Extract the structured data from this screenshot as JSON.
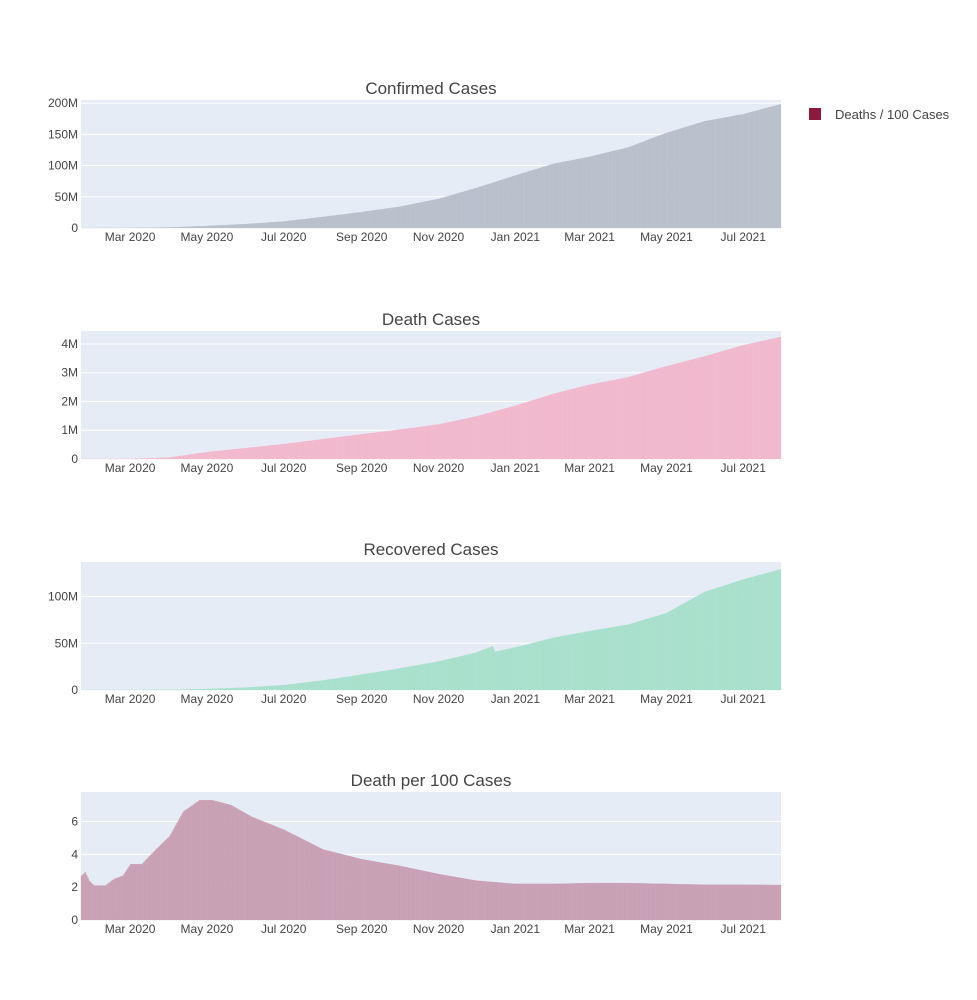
{
  "legend": {
    "label": "Deaths / 100 Cases",
    "color": "#8b1a3c",
    "placement": "top-right"
  },
  "colors": {
    "plot_background": "#e5ecf6",
    "gridline": "#ffffff",
    "text": "#444444"
  },
  "chart_data": [
    {
      "type": "bar",
      "title": "Confirmed Cases",
      "color": "#b8c0cc",
      "x_range": [
        "2020-01-22",
        "2021-07-31"
      ],
      "x_ticks": [
        {
          "date": "2020-03-01",
          "label": "Mar 2020"
        },
        {
          "date": "2020-05-01",
          "label": "May 2020"
        },
        {
          "date": "2020-07-01",
          "label": "Jul 2020"
        },
        {
          "date": "2020-09-01",
          "label": "Sep 2020"
        },
        {
          "date": "2020-11-01",
          "label": "Nov 2020"
        },
        {
          "date": "2021-01-01",
          "label": "Jan 2021"
        },
        {
          "date": "2021-03-01",
          "label": "Mar 2021"
        },
        {
          "date": "2021-05-01",
          "label": "May 2021"
        },
        {
          "date": "2021-07-01",
          "label": "Jul 2021"
        }
      ],
      "y_range": [
        0,
        205000000
      ],
      "y_ticks": [
        {
          "value": 0,
          "label": "0"
        },
        {
          "value": 50000000,
          "label": "50M"
        },
        {
          "value": 100000000,
          "label": "100M"
        },
        {
          "value": 150000000,
          "label": "150M"
        },
        {
          "value": 200000000,
          "label": "200M"
        }
      ],
      "grid": true,
      "points": [
        {
          "date": "2020-01-22",
          "value": 0
        },
        {
          "date": "2020-03-01",
          "value": 90000
        },
        {
          "date": "2020-04-01",
          "value": 900000
        },
        {
          "date": "2020-05-01",
          "value": 3300000
        },
        {
          "date": "2020-06-01",
          "value": 6300000
        },
        {
          "date": "2020-07-01",
          "value": 10500000
        },
        {
          "date": "2020-08-01",
          "value": 17700000
        },
        {
          "date": "2020-09-01",
          "value": 25600000
        },
        {
          "date": "2020-10-01",
          "value": 34000000
        },
        {
          "date": "2020-11-01",
          "value": 46500000
        },
        {
          "date": "2020-12-01",
          "value": 64000000
        },
        {
          "date": "2021-01-01",
          "value": 84000000
        },
        {
          "date": "2021-02-01",
          "value": 103000000
        },
        {
          "date": "2021-03-01",
          "value": 114000000
        },
        {
          "date": "2021-04-01",
          "value": 129000000
        },
        {
          "date": "2021-05-01",
          "value": 152000000
        },
        {
          "date": "2021-06-01",
          "value": 171000000
        },
        {
          "date": "2021-07-01",
          "value": 182000000
        },
        {
          "date": "2021-07-31",
          "value": 198000000
        }
      ]
    },
    {
      "type": "bar",
      "title": "Death Cases",
      "color": "#f2b8cd",
      "x_range": [
        "2020-01-22",
        "2021-07-31"
      ],
      "x_ticks": [
        {
          "date": "2020-03-01",
          "label": "Mar 2020"
        },
        {
          "date": "2020-05-01",
          "label": "May 2020"
        },
        {
          "date": "2020-07-01",
          "label": "Jul 2020"
        },
        {
          "date": "2020-09-01",
          "label": "Sep 2020"
        },
        {
          "date": "2020-11-01",
          "label": "Nov 2020"
        },
        {
          "date": "2021-01-01",
          "label": "Jan 2021"
        },
        {
          "date": "2021-03-01",
          "label": "Mar 2021"
        },
        {
          "date": "2021-05-01",
          "label": "May 2021"
        },
        {
          "date": "2021-07-01",
          "label": "Jul 2021"
        }
      ],
      "y_range": [
        0,
        4450000
      ],
      "y_ticks": [
        {
          "value": 0,
          "label": "0"
        },
        {
          "value": 1000000,
          "label": "1M"
        },
        {
          "value": 2000000,
          "label": "2M"
        },
        {
          "value": 3000000,
          "label": "3M"
        },
        {
          "value": 4000000,
          "label": "4M"
        }
      ],
      "grid": true,
      "points": [
        {
          "date": "2020-01-22",
          "value": 0
        },
        {
          "date": "2020-03-01",
          "value": 3000
        },
        {
          "date": "2020-04-01",
          "value": 50000
        },
        {
          "date": "2020-05-01",
          "value": 240000
        },
        {
          "date": "2020-06-01",
          "value": 380000
        },
        {
          "date": "2020-07-01",
          "value": 520000
        },
        {
          "date": "2020-08-01",
          "value": 690000
        },
        {
          "date": "2020-09-01",
          "value": 860000
        },
        {
          "date": "2020-10-01",
          "value": 1020000
        },
        {
          "date": "2020-11-01",
          "value": 1200000
        },
        {
          "date": "2020-12-01",
          "value": 1480000
        },
        {
          "date": "2021-01-01",
          "value": 1850000
        },
        {
          "date": "2021-02-01",
          "value": 2270000
        },
        {
          "date": "2021-03-01",
          "value": 2580000
        },
        {
          "date": "2021-04-01",
          "value": 2840000
        },
        {
          "date": "2021-05-01",
          "value": 3220000
        },
        {
          "date": "2021-06-01",
          "value": 3570000
        },
        {
          "date": "2021-07-01",
          "value": 3950000
        },
        {
          "date": "2021-07-31",
          "value": 4240000
        }
      ]
    },
    {
      "type": "bar",
      "title": "Recovered Cases",
      "color": "#a8e0cc",
      "x_range": [
        "2020-01-22",
        "2021-07-31"
      ],
      "x_ticks": [
        {
          "date": "2020-03-01",
          "label": "Mar 2020"
        },
        {
          "date": "2020-05-01",
          "label": "May 2020"
        },
        {
          "date": "2020-07-01",
          "label": "Jul 2020"
        },
        {
          "date": "2020-09-01",
          "label": "Sep 2020"
        },
        {
          "date": "2020-11-01",
          "label": "Nov 2020"
        },
        {
          "date": "2021-01-01",
          "label": "Jan 2021"
        },
        {
          "date": "2021-03-01",
          "label": "Mar 2021"
        },
        {
          "date": "2021-05-01",
          "label": "May 2021"
        },
        {
          "date": "2021-07-01",
          "label": "Jul 2021"
        }
      ],
      "y_range": [
        0,
        137000000
      ],
      "y_ticks": [
        {
          "value": 0,
          "label": "0"
        },
        {
          "value": 50000000,
          "label": "50M"
        },
        {
          "value": 100000000,
          "label": "100M"
        }
      ],
      "grid": true,
      "points": [
        {
          "date": "2020-01-22",
          "value": 0
        },
        {
          "date": "2020-03-01",
          "value": 40000
        },
        {
          "date": "2020-04-01",
          "value": 250000
        },
        {
          "date": "2020-05-01",
          "value": 1100000
        },
        {
          "date": "2020-06-01",
          "value": 2600000
        },
        {
          "date": "2020-07-01",
          "value": 5200000
        },
        {
          "date": "2020-08-01",
          "value": 10200000
        },
        {
          "date": "2020-09-01",
          "value": 16500000
        },
        {
          "date": "2020-10-01",
          "value": 23000000
        },
        {
          "date": "2020-11-01",
          "value": 30500000
        },
        {
          "date": "2020-12-01",
          "value": 40000000
        },
        {
          "date": "2020-12-14",
          "value": 47000000
        },
        {
          "date": "2020-12-16",
          "value": 41000000
        },
        {
          "date": "2021-01-01",
          "value": 45500000
        },
        {
          "date": "2021-02-01",
          "value": 56000000
        },
        {
          "date": "2021-03-01",
          "value": 63000000
        },
        {
          "date": "2021-04-01",
          "value": 70000000
        },
        {
          "date": "2021-05-01",
          "value": 82000000
        },
        {
          "date": "2021-06-01",
          "value": 105000000
        },
        {
          "date": "2021-07-01",
          "value": 118000000
        },
        {
          "date": "2021-07-31",
          "value": 129000000
        }
      ]
    },
    {
      "type": "bar",
      "title": "Death per 100 Cases",
      "color": "#c9a0b4",
      "x_range": [
        "2020-01-22",
        "2021-07-31"
      ],
      "x_ticks": [
        {
          "date": "2020-03-01",
          "label": "Mar 2020"
        },
        {
          "date": "2020-05-01",
          "label": "May 2020"
        },
        {
          "date": "2020-07-01",
          "label": "Jul 2020"
        },
        {
          "date": "2020-09-01",
          "label": "Sep 2020"
        },
        {
          "date": "2020-11-01",
          "label": "Nov 2020"
        },
        {
          "date": "2021-01-01",
          "label": "Jan 2021"
        },
        {
          "date": "2021-03-01",
          "label": "Mar 2021"
        },
        {
          "date": "2021-05-01",
          "label": "May 2021"
        },
        {
          "date": "2021-07-01",
          "label": "Jul 2021"
        }
      ],
      "y_range": [
        0,
        7.8
      ],
      "y_ticks": [
        {
          "value": 0,
          "label": "0"
        },
        {
          "value": 2,
          "label": "2"
        },
        {
          "value": 4,
          "label": "4"
        },
        {
          "value": 6,
          "label": "6"
        }
      ],
      "grid": true,
      "points": [
        {
          "date": "2020-01-22",
          "value": 2.7
        },
        {
          "date": "2020-01-25",
          "value": 2.9
        },
        {
          "date": "2020-01-28",
          "value": 2.4
        },
        {
          "date": "2020-02-01",
          "value": 2.1
        },
        {
          "date": "2020-02-10",
          "value": 2.1
        },
        {
          "date": "2020-02-17",
          "value": 2.5
        },
        {
          "date": "2020-02-24",
          "value": 2.7
        },
        {
          "date": "2020-03-01",
          "value": 3.4
        },
        {
          "date": "2020-03-10",
          "value": 3.4
        },
        {
          "date": "2020-03-20",
          "value": 4.2
        },
        {
          "date": "2020-04-01",
          "value": 5.1
        },
        {
          "date": "2020-04-12",
          "value": 6.6
        },
        {
          "date": "2020-04-25",
          "value": 7.3
        },
        {
          "date": "2020-05-05",
          "value": 7.3
        },
        {
          "date": "2020-05-20",
          "value": 7.0
        },
        {
          "date": "2020-06-05",
          "value": 6.3
        },
        {
          "date": "2020-07-01",
          "value": 5.5
        },
        {
          "date": "2020-08-01",
          "value": 4.3
        },
        {
          "date": "2020-09-01",
          "value": 3.7
        },
        {
          "date": "2020-10-01",
          "value": 3.3
        },
        {
          "date": "2020-11-01",
          "value": 2.8
        },
        {
          "date": "2020-12-01",
          "value": 2.4
        },
        {
          "date": "2021-01-01",
          "value": 2.2
        },
        {
          "date": "2021-02-01",
          "value": 2.2
        },
        {
          "date": "2021-03-01",
          "value": 2.25
        },
        {
          "date": "2021-04-01",
          "value": 2.25
        },
        {
          "date": "2021-05-01",
          "value": 2.2
        },
        {
          "date": "2021-06-01",
          "value": 2.15
        },
        {
          "date": "2021-07-01",
          "value": 2.15
        },
        {
          "date": "2021-07-31",
          "value": 2.13
        }
      ]
    }
  ]
}
